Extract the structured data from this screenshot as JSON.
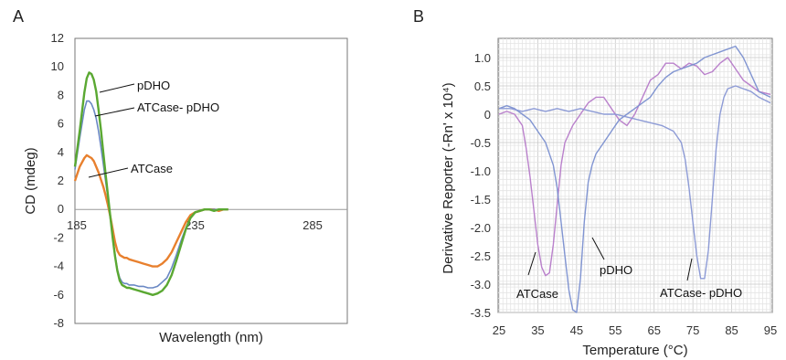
{
  "figure": {
    "panel_a_letter": "A",
    "panel_b_letter": "B"
  },
  "chart_data": [
    {
      "type": "line",
      "panel": "A",
      "xlabel": "Wavelength (nm)",
      "ylabel": "CD (mdeg)",
      "xlim": [
        185,
        250
      ],
      "ylim": [
        -8,
        12
      ],
      "x_ticks": [
        185,
        235,
        285
      ],
      "x_tick_labels": [
        "185",
        "235",
        "285"
      ],
      "y_ticks": [
        12,
        10,
        8,
        6,
        4,
        2,
        0,
        -2,
        -4,
        -6,
        -8
      ],
      "y_tick_labels": [
        "12",
        "10",
        "8",
        "6",
        "4",
        "2",
        "0",
        "-2",
        "-4",
        "-6",
        "-8"
      ],
      "grid": false,
      "series": [
        {
          "name": "pDHO",
          "color": "#5aa832",
          "x": [
            185,
            187,
            189,
            190,
            191,
            192,
            193,
            194,
            195,
            196,
            197,
            198,
            199,
            200,
            201,
            202,
            203,
            204,
            205,
            206,
            207,
            208,
            210,
            212,
            214,
            216,
            218,
            220,
            222,
            224,
            226,
            228,
            230,
            232,
            234,
            236,
            238,
            240,
            242,
            244,
            246,
            248,
            250
          ],
          "y": [
            3.0,
            5.5,
            8.2,
            9.2,
            9.6,
            9.5,
            9.1,
            8.3,
            7.0,
            5.6,
            4.0,
            2.5,
            1.0,
            -0.5,
            -2.0,
            -3.3,
            -4.3,
            -5.0,
            -5.3,
            -5.4,
            -5.5,
            -5.5,
            -5.6,
            -5.7,
            -5.8,
            -5.9,
            -6.0,
            -5.9,
            -5.7,
            -5.3,
            -4.6,
            -3.6,
            -2.5,
            -1.4,
            -0.6,
            -0.2,
            -0.1,
            0.0,
            0.0,
            -0.1,
            0.0,
            0.0,
            0.0
          ]
        },
        {
          "name": "ATCase- pDHO",
          "color": "#6a88c4",
          "x": [
            185,
            187,
            189,
            190,
            191,
            192,
            193,
            194,
            195,
            196,
            197,
            198,
            199,
            200,
            201,
            202,
            203,
            204,
            205,
            206,
            207,
            208,
            210,
            212,
            214,
            216,
            218,
            220,
            222,
            224,
            226,
            228,
            230,
            232,
            234,
            236,
            238,
            240,
            242,
            244,
            246,
            248,
            250
          ],
          "y": [
            2.8,
            5.0,
            7.0,
            7.6,
            7.6,
            7.4,
            7.0,
            6.4,
            5.5,
            4.4,
            3.2,
            2.0,
            0.8,
            -0.6,
            -2.0,
            -3.2,
            -4.2,
            -4.8,
            -5.1,
            -5.2,
            -5.2,
            -5.3,
            -5.3,
            -5.4,
            -5.4,
            -5.5,
            -5.5,
            -5.4,
            -5.1,
            -4.8,
            -4.1,
            -3.2,
            -2.2,
            -1.3,
            -0.6,
            -0.2,
            -0.1,
            0.0,
            0.0,
            0.0,
            0.0,
            0.0,
            0.0
          ]
        },
        {
          "name": "ATCase",
          "color": "#e8802e",
          "x": [
            185,
            187,
            189,
            190,
            191,
            192,
            193,
            194,
            195,
            196,
            197,
            198,
            199,
            200,
            201,
            202,
            203,
            204,
            205,
            206,
            207,
            208,
            210,
            212,
            214,
            216,
            218,
            220,
            222,
            224,
            226,
            228,
            230,
            232,
            234,
            236,
            238,
            240,
            242,
            244,
            246,
            248,
            250
          ],
          "y": [
            2.0,
            3.0,
            3.6,
            3.8,
            3.7,
            3.6,
            3.4,
            3.0,
            2.6,
            2.1,
            1.6,
            1.0,
            0.3,
            -0.5,
            -1.4,
            -2.3,
            -2.9,
            -3.2,
            -3.3,
            -3.4,
            -3.4,
            -3.5,
            -3.6,
            -3.7,
            -3.8,
            -3.9,
            -4.0,
            -4.0,
            -3.8,
            -3.5,
            -3.0,
            -2.3,
            -1.6,
            -0.9,
            -0.4,
            -0.2,
            -0.1,
            0.0,
            0.0,
            0.0,
            -0.1,
            0.0,
            0.0
          ]
        }
      ],
      "annotations": [
        "pDHO",
        "ATCase- pDHO",
        "ATCase"
      ]
    },
    {
      "type": "line",
      "panel": "B",
      "xlabel": "Temperature (°C)",
      "ylabel": "Derivative Reporter (-Rn' x 10⁴)",
      "xlim": [
        25,
        95
      ],
      "ylim": [
        -3.5,
        1.25
      ],
      "x_ticks": [
        25,
        35,
        45,
        55,
        65,
        75,
        85,
        95
      ],
      "x_tick_labels": [
        "25",
        "35",
        "45",
        "55",
        "65",
        "75",
        "85",
        "95"
      ],
      "y_ticks": [
        1.0,
        0.5,
        0,
        -0.5,
        -1.0,
        -1.5,
        -2.0,
        -2.5,
        -3.0,
        -3.5
      ],
      "y_tick_labels": [
        "1.0",
        "0.5",
        "0",
        "-0.5",
        "-1.0",
        "-1.5",
        "-2.0",
        "-2.5",
        "-3.0",
        "-3.5"
      ],
      "grid": true,
      "series": [
        {
          "name": "ATCase",
          "color": "#b67ac9",
          "x": [
            25,
            27,
            29,
            31,
            32,
            33,
            34,
            35,
            36,
            37,
            38,
            39,
            40,
            41,
            42,
            44,
            46,
            48,
            50,
            52,
            54,
            56,
            58,
            60,
            62,
            64,
            66,
            68,
            70,
            72,
            74,
            76,
            78,
            80,
            82,
            84,
            86,
            88,
            90,
            92,
            95
          ],
          "y": [
            0.0,
            0.05,
            0.0,
            -0.2,
            -0.6,
            -1.1,
            -1.7,
            -2.3,
            -2.7,
            -2.85,
            -2.8,
            -2.3,
            -1.6,
            -0.9,
            -0.5,
            -0.2,
            0.0,
            0.2,
            0.3,
            0.3,
            0.1,
            -0.1,
            -0.2,
            0.0,
            0.3,
            0.6,
            0.7,
            0.9,
            0.9,
            0.8,
            0.9,
            0.85,
            0.7,
            0.75,
            0.9,
            1.0,
            0.8,
            0.6,
            0.5,
            0.4,
            0.35
          ]
        },
        {
          "name": "pDHO",
          "color": "#7a8fd0",
          "x": [
            25,
            27,
            29,
            31,
            33,
            35,
            37,
            39,
            40,
            41,
            42,
            43,
            44,
            45,
            46,
            47,
            48,
            49,
            50,
            52,
            54,
            56,
            58,
            60,
            62,
            64,
            66,
            68,
            70,
            72,
            74,
            76,
            78,
            80,
            82,
            84,
            86,
            88,
            90,
            92,
            95
          ],
          "y": [
            0.1,
            0.15,
            0.1,
            0.0,
            -0.1,
            -0.3,
            -0.5,
            -0.9,
            -1.3,
            -1.9,
            -2.5,
            -3.1,
            -3.45,
            -3.5,
            -2.9,
            -1.9,
            -1.2,
            -0.9,
            -0.7,
            -0.5,
            -0.3,
            -0.1,
            0.0,
            0.1,
            0.2,
            0.3,
            0.5,
            0.65,
            0.75,
            0.8,
            0.85,
            0.9,
            1.0,
            1.05,
            1.1,
            1.15,
            1.2,
            1.0,
            0.7,
            0.4,
            0.3
          ]
        },
        {
          "name": "ATCase- pDHO",
          "color": "#8796d4",
          "x": [
            25,
            28,
            31,
            34,
            37,
            40,
            43,
            46,
            49,
            52,
            55,
            58,
            61,
            64,
            67,
            70,
            72,
            73,
            74,
            75,
            76,
            77,
            78,
            79,
            80,
            81,
            82,
            83,
            84,
            86,
            88,
            90,
            92,
            95
          ],
          "y": [
            0.1,
            0.1,
            0.05,
            0.1,
            0.05,
            0.1,
            0.05,
            0.1,
            0.05,
            0.0,
            0.0,
            -0.05,
            -0.1,
            -0.15,
            -0.2,
            -0.3,
            -0.5,
            -0.8,
            -1.3,
            -1.9,
            -2.5,
            -2.9,
            -2.9,
            -2.4,
            -1.5,
            -0.6,
            0.0,
            0.3,
            0.45,
            0.5,
            0.45,
            0.4,
            0.3,
            0.2
          ]
        }
      ],
      "annotations": [
        "ATCase",
        "pDHO",
        "ATCase- pDHO"
      ]
    }
  ]
}
